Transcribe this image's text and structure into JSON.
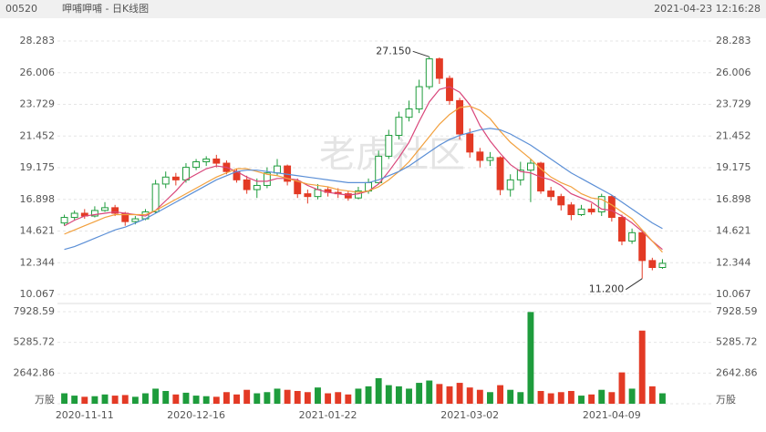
{
  "header": {
    "code": "00520",
    "name": "呷哺呷哺 - 日K线图",
    "time": "2021-04-23 12:16:28"
  },
  "chart_data": {
    "type": "candlestick",
    "watermark": "老虎社区",
    "categories": [
      null,
      null,
      "2020-11-11",
      null,
      null,
      null,
      null,
      null,
      null,
      null,
      null,
      null,
      null,
      "2020-12-16",
      null,
      null,
      null,
      null,
      null,
      null,
      null,
      null,
      null,
      null,
      null,
      null,
      "2021-01-22",
      null,
      null,
      null,
      null,
      null,
      null,
      null,
      null,
      null,
      null,
      null,
      null,
      null,
      "2021-03-02",
      null,
      null,
      null,
      null,
      null,
      null,
      null,
      null,
      null,
      null,
      null,
      null,
      null,
      "2021-04-09",
      null,
      null,
      null,
      null,
      null
    ],
    "open": [
      15.2,
      15.6,
      15.9,
      15.7,
      16.1,
      16.3,
      15.9,
      15.3,
      15.5,
      16.0,
      18.0,
      18.5,
      18.3,
      19.2,
      19.6,
      19.8,
      19.5,
      18.9,
      18.3,
      17.6,
      17.9,
      18.8,
      19.3,
      18.2,
      17.3,
      17.1,
      17.6,
      17.4,
      17.3,
      17.0,
      17.5,
      18.1,
      20.0,
      21.5,
      22.8,
      23.4,
      25.0,
      27.0,
      25.6,
      24.0,
      21.6,
      20.3,
      19.7,
      19.9,
      17.6,
      18.3,
      19.0,
      19.5,
      17.5,
      17.1,
      16.5,
      15.8,
      16.2,
      16.0,
      17.1,
      15.6,
      13.9,
      14.5,
      12.5,
      12.0
    ],
    "high": [
      15.8,
      16.1,
      16.2,
      16.4,
      16.7,
      16.5,
      16.0,
      15.7,
      16.2,
      18.3,
      18.9,
      18.8,
      19.5,
      19.8,
      20.0,
      20.1,
      19.7,
      19.1,
      18.6,
      18.4,
      19.2,
      19.8,
      19.4,
      18.4,
      17.6,
      18.0,
      17.8,
      17.7,
      17.5,
      17.8,
      18.4,
      20.4,
      21.9,
      23.2,
      24.0,
      25.5,
      27.15,
      27.1,
      25.8,
      24.2,
      22.0,
      20.6,
      20.3,
      20.0,
      18.7,
      19.6,
      19.8,
      19.6,
      17.8,
      17.3,
      16.7,
      16.5,
      16.6,
      17.3,
      17.2,
      15.8,
      14.8,
      14.6,
      12.7,
      12.6
    ],
    "low": [
      15.0,
      15.4,
      15.5,
      15.6,
      16.0,
      15.7,
      15.0,
      15.1,
      15.4,
      15.9,
      17.7,
      17.9,
      18.1,
      19.0,
      19.3,
      19.2,
      18.7,
      18.1,
      17.3,
      17.0,
      17.7,
      18.6,
      17.9,
      17.0,
      16.6,
      16.9,
      17.1,
      17.0,
      16.8,
      16.9,
      17.3,
      18.0,
      19.8,
      21.2,
      22.5,
      23.1,
      24.8,
      25.2,
      23.7,
      21.2,
      19.9,
      19.2,
      19.3,
      17.2,
      17.1,
      17.9,
      16.7,
      17.3,
      16.8,
      16.1,
      15.4,
      15.7,
      15.8,
      15.7,
      15.3,
      13.6,
      13.7,
      11.2,
      11.8,
      11.9
    ],
    "close": [
      15.6,
      15.9,
      15.7,
      16.1,
      16.3,
      15.9,
      15.3,
      15.5,
      16.0,
      18.0,
      18.5,
      18.3,
      19.2,
      19.6,
      19.8,
      19.5,
      18.9,
      18.3,
      17.6,
      17.9,
      18.8,
      19.3,
      18.2,
      17.3,
      17.1,
      17.6,
      17.4,
      17.3,
      17.0,
      17.5,
      18.1,
      20.0,
      21.5,
      22.8,
      23.4,
      25.0,
      27.0,
      25.6,
      24.0,
      21.6,
      20.3,
      19.7,
      19.9,
      17.6,
      18.3,
      19.0,
      19.5,
      17.5,
      17.1,
      16.5,
      15.8,
      16.2,
      16.0,
      17.1,
      15.6,
      13.9,
      14.5,
      12.5,
      12.0,
      12.3
    ],
    "volume": [
      900,
      700,
      600,
      650,
      800,
      700,
      750,
      600,
      900,
      1300,
      1100,
      800,
      950,
      700,
      650,
      600,
      1000,
      800,
      1200,
      900,
      1000,
      1300,
      1200,
      1100,
      1000,
      1400,
      900,
      1000,
      800,
      1300,
      1500,
      2200,
      1600,
      1500,
      1300,
      1800,
      2000,
      1700,
      1500,
      1800,
      1400,
      1200,
      1000,
      1600,
      1200,
      1000,
      7900,
      1100,
      900,
      1000,
      1100,
      700,
      800,
      1200,
      1000,
      2700,
      1300,
      6300,
      1500,
      900
    ],
    "ma": [
      {
        "color": "#d9467a",
        "values": [
          15.0,
          15.4,
          15.7,
          15.8,
          15.9,
          16.0,
          15.9,
          15.8,
          15.7,
          16.1,
          16.8,
          17.5,
          18.3,
          18.7,
          19.1,
          19.3,
          19.2,
          18.9,
          18.5,
          18.2,
          18.2,
          18.4,
          18.4,
          18.3,
          17.9,
          17.6,
          17.4,
          17.3,
          17.2,
          17.3,
          17.5,
          18.0,
          18.9,
          19.9,
          21.0,
          22.5,
          23.9,
          24.8,
          25.0,
          24.6,
          23.7,
          22.2,
          21.1,
          20.2,
          19.4,
          18.9,
          18.8,
          18.5,
          18.3,
          17.9,
          17.3,
          17.0,
          16.7,
          16.2,
          16.1,
          15.7,
          15.2,
          14.6,
          13.9,
          13.3
        ]
      },
      {
        "color": "#f2a03d",
        "values": [
          14.4,
          14.7,
          15.0,
          15.3,
          15.6,
          15.8,
          15.8,
          15.8,
          15.8,
          16.1,
          16.5,
          16.9,
          17.3,
          17.7,
          18.1,
          18.5,
          18.8,
          19.1,
          19.1,
          18.9,
          18.7,
          18.6,
          18.4,
          18.2,
          18.0,
          17.9,
          17.8,
          17.6,
          17.5,
          17.4,
          17.5,
          17.8,
          18.3,
          18.9,
          19.6,
          20.5,
          21.4,
          22.3,
          23.0,
          23.5,
          23.6,
          23.3,
          22.7,
          21.8,
          21.0,
          20.4,
          19.8,
          19.1,
          18.5,
          18.1,
          17.8,
          17.3,
          17.0,
          16.9,
          16.5,
          16.0,
          15.5,
          14.7,
          13.9,
          13.1
        ]
      },
      {
        "color": "#5b8fd6",
        "values": [
          13.3,
          13.5,
          13.8,
          14.1,
          14.4,
          14.7,
          14.9,
          15.2,
          15.5,
          15.9,
          16.3,
          16.7,
          17.1,
          17.5,
          17.9,
          18.3,
          18.6,
          18.9,
          19.0,
          19.0,
          18.9,
          18.8,
          18.7,
          18.6,
          18.5,
          18.4,
          18.3,
          18.2,
          18.1,
          18.1,
          18.1,
          18.3,
          18.6,
          18.9,
          19.3,
          19.8,
          20.3,
          20.8,
          21.2,
          21.5,
          21.7,
          21.9,
          22.0,
          21.9,
          21.6,
          21.2,
          20.8,
          20.3,
          19.8,
          19.3,
          18.8,
          18.4,
          18.0,
          17.6,
          17.2,
          16.7,
          16.2,
          15.7,
          15.2,
          14.8
        ]
      }
    ],
    "annotations": [
      {
        "label": "27.150",
        "value": 27.15
      },
      {
        "label": "11.200",
        "value": 11.2
      }
    ],
    "up_color": "#1e9c3c",
    "down_color": "#e33a25",
    "ylim": [
      10.067,
      28.283
    ],
    "yticks": [
      10.067,
      12.344,
      14.621,
      16.898,
      19.175,
      21.452,
      23.729,
      26.006,
      28.283
    ],
    "y2lim": [
      0,
      7928.59
    ],
    "y2ticks": [
      {
        "value": 0,
        "label": "万股"
      },
      2642.86,
      5285.72,
      7928.59
    ]
  }
}
